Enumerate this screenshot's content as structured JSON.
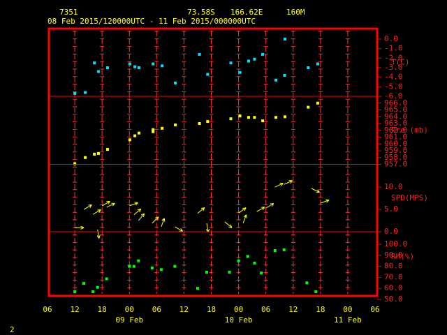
{
  "header": {
    "station": "7351",
    "latitude": "73.58S",
    "longitude": "166.62E",
    "elevation": "160M",
    "period": "08 Feb 2015/120000UTC - 11 Feb 2015/000000UTC"
  },
  "page_number": "2",
  "x_axis": {
    "xlim": [
      6,
      78
    ],
    "xticks": [
      {
        "value": 6,
        "label": "06"
      },
      {
        "value": 12,
        "label": "12"
      },
      {
        "value": 18,
        "label": "18"
      },
      {
        "value": 24,
        "label": "00"
      },
      {
        "value": 30,
        "label": "06"
      },
      {
        "value": 36,
        "label": "12"
      },
      {
        "value": 42,
        "label": "18"
      },
      {
        "value": 48,
        "label": "00"
      },
      {
        "value": 54,
        "label": "06"
      },
      {
        "value": 60,
        "label": "12"
      },
      {
        "value": 66,
        "label": "18"
      },
      {
        "value": 72,
        "label": "00"
      },
      {
        "value": 78,
        "label": "06"
      }
    ],
    "date_labels": [
      {
        "value": 24,
        "label": "09 Feb"
      },
      {
        "value": 48,
        "label": "10 Feb"
      },
      {
        "value": 72,
        "label": "11 Feb"
      }
    ]
  },
  "chart_data": [
    {
      "type": "scatter",
      "ylabel": "T(C)",
      "color": "#00e0ff",
      "x": [
        12,
        14.3,
        16.3,
        17.2,
        19.2,
        24.1,
        25.2,
        26.1,
        29.2,
        31.2,
        34.1,
        39.4,
        41.2,
        46.3,
        48.3,
        50.2,
        51.5,
        53.3,
        56.2,
        58.1,
        58.2,
        63.3,
        65.4
      ],
      "values": [
        -5.7,
        -5.6,
        -2.5,
        -3.4,
        -3.0,
        -2.6,
        -2.9,
        -3.0,
        -2.6,
        -2.8,
        -4.6,
        -1.6,
        -3.7,
        -2.5,
        -3.5,
        -2.3,
        -2.1,
        -1.6,
        -4.3,
        -3.8,
        0.0,
        -3.0,
        -2.6
      ],
      "ylim": [
        -6.0,
        1.1
      ],
      "yticks": [
        {
          "value": 0,
          "label": "0.0"
        },
        {
          "value": -1,
          "label": "-1.0"
        },
        {
          "value": -2,
          "label": "-2.0"
        },
        {
          "value": -3,
          "label": "-3.0"
        },
        {
          "value": -4,
          "label": "-4.0"
        },
        {
          "value": -5,
          "label": "-5.0"
        },
        {
          "value": -6,
          "label": "-6.0"
        }
      ]
    },
    {
      "type": "scatter",
      "ylabel": "Pre (mb)",
      "color": "#ffff00",
      "x": [
        12,
        14.3,
        16.3,
        17.2,
        19.2,
        24.1,
        25.2,
        26.1,
        29.2,
        29.2,
        31.2,
        34.1,
        39.4,
        41.2,
        46.3,
        48.3,
        50.2,
        51.5,
        53.3,
        56.2,
        58.2,
        63.3,
        65.4
      ],
      "values": [
        957.1,
        958.0,
        958.5,
        958.6,
        959.2,
        960.6,
        961.2,
        961.6,
        962.1,
        961.8,
        962.3,
        962.8,
        963.0,
        963.3,
        963.7,
        964.1,
        963.9,
        963.9,
        963.4,
        963.9,
        964.0,
        965.4,
        966.0
      ],
      "ylim": [
        957.0,
        967.0
      ],
      "yticks": [
        {
          "value": 966,
          "label": "966.0"
        },
        {
          "value": 965,
          "label": "965.0"
        },
        {
          "value": 964,
          "label": "964.0"
        },
        {
          "value": 963,
          "label": "963.0"
        },
        {
          "value": 962,
          "label": "962.0"
        },
        {
          "value": 961,
          "label": "961.0"
        },
        {
          "value": 960,
          "label": "960.0"
        },
        {
          "value": 959,
          "label": "959.0"
        },
        {
          "value": 958,
          "label": "958.0"
        },
        {
          "value": 957,
          "label": "957.0"
        }
      ]
    },
    {
      "type": "vector",
      "ylabel": "SPD(MPS)",
      "color": "#ffff00",
      "x": [
        12,
        17,
        14,
        16,
        18,
        19,
        24,
        25,
        26,
        29,
        31,
        34,
        39,
        41,
        45,
        48,
        49,
        52,
        54,
        56,
        58,
        64,
        66
      ],
      "values": [
        0.9,
        0.5,
        5.0,
        3.9,
        5.8,
        5.5,
        5.8,
        3.8,
        2.5,
        1.9,
        1.1,
        1.1,
        4.1,
        1.9,
        2.2,
        4.2,
        1.9,
        4.5,
        5.3,
        10.0,
        10.6,
        9.7,
        6.4
      ],
      "arrow_angles": [
        0,
        -80,
        30,
        30,
        30,
        25,
        20,
        40,
        50,
        45,
        70,
        -30,
        40,
        -80,
        -40,
        35,
        70,
        30,
        30,
        25,
        25,
        -25,
        20
      ],
      "ylim": [
        0,
        15.1
      ],
      "yticks": [
        {
          "value": 10,
          "label": "10.0"
        },
        {
          "value": 5,
          "label": "5.0"
        },
        {
          "value": 0,
          "label": "0.0"
        }
      ]
    },
    {
      "type": "scatter",
      "ylabel": "RH(%)",
      "color": "#00ff00",
      "x": [
        12,
        14,
        16,
        17,
        19,
        24,
        25,
        26,
        29,
        31,
        34,
        39,
        41,
        46,
        48,
        50,
        51.5,
        53,
        56,
        58,
        63,
        65
      ],
      "values": [
        57,
        64.5,
        57,
        61,
        68.7,
        80,
        80,
        85,
        78.5,
        77,
        80,
        60,
        74.7,
        74.7,
        85,
        89,
        83,
        74,
        94.3,
        95,
        65,
        57
      ],
      "ylim": [
        50,
        111.4
      ],
      "yticks": [
        {
          "value": 100,
          "label": "100.0"
        },
        {
          "value": 90,
          "label": "90.0"
        },
        {
          "value": 80,
          "label": "80.0"
        },
        {
          "value": 70,
          "label": "70.0"
        },
        {
          "value": 60,
          "label": "60.0"
        },
        {
          "value": 50,
          "label": "50.0"
        }
      ]
    }
  ]
}
